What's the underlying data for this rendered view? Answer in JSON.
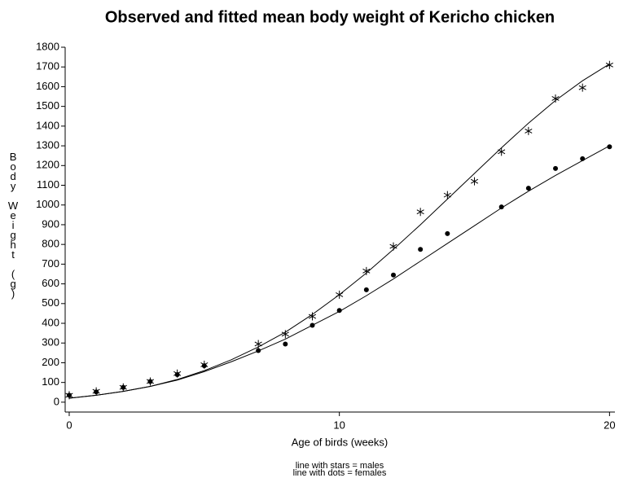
{
  "chart_data": {
    "type": "scatter",
    "title": "Observed and fitted mean body weight of Kericho chicken",
    "xlabel": "Age of birds (weeks)",
    "ylabel": "Body Weight (g)",
    "notes": [
      "line with stars = males",
      "line with dots = females"
    ],
    "xlim": [
      -0.15,
      20.2
    ],
    "xticks": [
      0,
      10,
      20
    ],
    "ylim": [
      -50,
      1800
    ],
    "yticks": [
      0,
      100,
      200,
      300,
      400,
      500,
      600,
      700,
      800,
      900,
      1000,
      1100,
      1200,
      1300,
      1400,
      1500,
      1600,
      1700,
      1800
    ],
    "series": [
      {
        "marker": "star",
        "color": "#000000",
        "x": [
          0,
          1,
          2,
          3,
          4,
          5,
          7,
          8,
          9,
          10,
          11,
          12,
          13,
          14,
          15,
          16,
          17,
          18,
          19,
          20
        ],
        "values": [
          35,
          55,
          75,
          105,
          145,
          190,
          295,
          345,
          435,
          545,
          665,
          790,
          965,
          1050,
          1120,
          1270,
          1375,
          1540,
          1595,
          1710
        ],
        "fit_x": [
          0,
          1,
          2,
          3,
          4,
          5,
          6,
          7,
          8,
          9,
          10,
          11,
          12,
          13,
          14,
          15,
          16,
          17,
          18,
          19,
          20
        ],
        "fit_values": [
          20,
          35,
          55,
          80,
          115,
          160,
          215,
          280,
          355,
          445,
          545,
          655,
          775,
          900,
          1030,
          1160,
          1290,
          1415,
          1530,
          1630,
          1715
        ]
      },
      {
        "marker": "dot",
        "color": "#000000",
        "x": [
          0,
          1,
          2,
          3,
          4,
          5,
          7,
          8,
          9,
          10,
          11,
          12,
          13,
          14,
          16,
          17,
          18,
          19,
          20
        ],
        "values": [
          35,
          52,
          75,
          105,
          140,
          185,
          262,
          295,
          390,
          465,
          570,
          645,
          775,
          855,
          990,
          1085,
          1185,
          1235,
          1295
        ],
        "fit_x": [
          0,
          1,
          2,
          3,
          4,
          5,
          6,
          7,
          8,
          9,
          10,
          11,
          12,
          13,
          14,
          15,
          16,
          17,
          18,
          19,
          20
        ],
        "fit_values": [
          20,
          35,
          55,
          80,
          112,
          155,
          205,
          260,
          320,
          390,
          460,
          540,
          625,
          715,
          805,
          895,
          985,
          1070,
          1150,
          1225,
          1300
        ]
      }
    ]
  }
}
